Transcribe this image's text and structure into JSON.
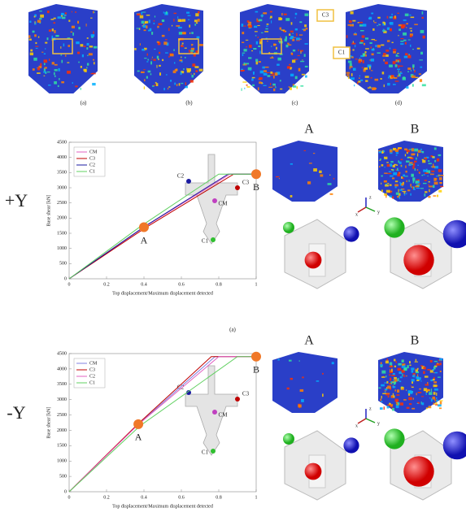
{
  "top_panels": {
    "labels": [
      "(a)",
      "(b)",
      "(c)",
      "(d)"
    ],
    "callouts": [
      "C3",
      "C1"
    ]
  },
  "sections": [
    {
      "direction": "+Y",
      "panel_titles": [
        "A",
        "B"
      ],
      "axes": [
        "z",
        "x",
        "y"
      ]
    },
    {
      "direction": "-Y",
      "panel_titles": [
        "A",
        "B"
      ],
      "axes": [
        "z",
        "x",
        "y"
      ]
    }
  ],
  "caption": "(a)",
  "chart_data": [
    {
      "type": "line",
      "xlabel": "Top displacement/Maximum displacement detected",
      "ylabel": "Base shear [kN]",
      "xlim": [
        0,
        1
      ],
      "xticks": [
        0,
        0.2,
        0.4,
        0.6,
        0.8,
        1
      ],
      "ylim": [
        0,
        4500
      ],
      "yticks": [
        0,
        500,
        1000,
        1500,
        2000,
        2500,
        3000,
        3500,
        4000,
        4500
      ],
      "legend": "upper-left",
      "series": [
        {
          "name": "CM",
          "color": "#e060c0",
          "x": [
            0,
            0.4,
            0.86,
            1
          ],
          "values": [
            0,
            1700,
            3450,
            3450
          ]
        },
        {
          "name": "C3",
          "color": "#c00000",
          "x": [
            0,
            0.41,
            0.88,
            1
          ],
          "values": [
            0,
            1690,
            3450,
            3450
          ]
        },
        {
          "name": "C2",
          "color": "#1a1aa0",
          "x": [
            0,
            0.4,
            0.85,
            1
          ],
          "values": [
            0,
            1710,
            3450,
            3450
          ]
        },
        {
          "name": "C1",
          "color": "#60d060",
          "x": [
            0,
            0.38,
            0.8,
            1
          ],
          "values": [
            0,
            1720,
            3450,
            3450
          ]
        }
      ],
      "points": [
        {
          "label": "A",
          "x": 0.4,
          "y": 1700
        },
        {
          "label": "B",
          "x": 1,
          "y": 3450
        }
      ],
      "inset_labels": [
        "C2",
        "C3",
        "CM",
        "C1"
      ]
    },
    {
      "type": "line",
      "xlabel": "Top displacement/Maximum displacement detected",
      "ylabel": "Base shear [kN]",
      "xlim": [
        0,
        1
      ],
      "xticks": [
        0,
        0.2,
        0.4,
        0.6,
        0.8,
        1
      ],
      "ylim": [
        0,
        4500
      ],
      "yticks": [
        0,
        500,
        1000,
        1500,
        2000,
        2500,
        3000,
        3500,
        4000,
        4500
      ],
      "legend": "upper-left",
      "series": [
        {
          "name": "CM",
          "color": "#8080e0",
          "x": [
            0,
            0.37,
            0.78,
            1
          ],
          "values": [
            0,
            2200,
            4400,
            4400
          ]
        },
        {
          "name": "C3",
          "color": "#c00000",
          "x": [
            0,
            0.37,
            0.76,
            1
          ],
          "values": [
            0,
            2220,
            4400,
            4400
          ]
        },
        {
          "name": "C2",
          "color": "#e060c0",
          "x": [
            0,
            0.37,
            0.8,
            1
          ],
          "values": [
            0,
            2190,
            4400,
            4400
          ]
        },
        {
          "name": "C1",
          "color": "#60d060",
          "x": [
            0,
            0.38,
            0.9,
            1
          ],
          "values": [
            0,
            2150,
            4400,
            4400
          ]
        }
      ],
      "points": [
        {
          "label": "A",
          "x": 0.37,
          "y": 2200
        },
        {
          "label": "B",
          "x": 1,
          "y": 4400
        }
      ],
      "inset_labels": [
        "C2",
        "C3",
        "CM",
        "C1"
      ]
    }
  ]
}
